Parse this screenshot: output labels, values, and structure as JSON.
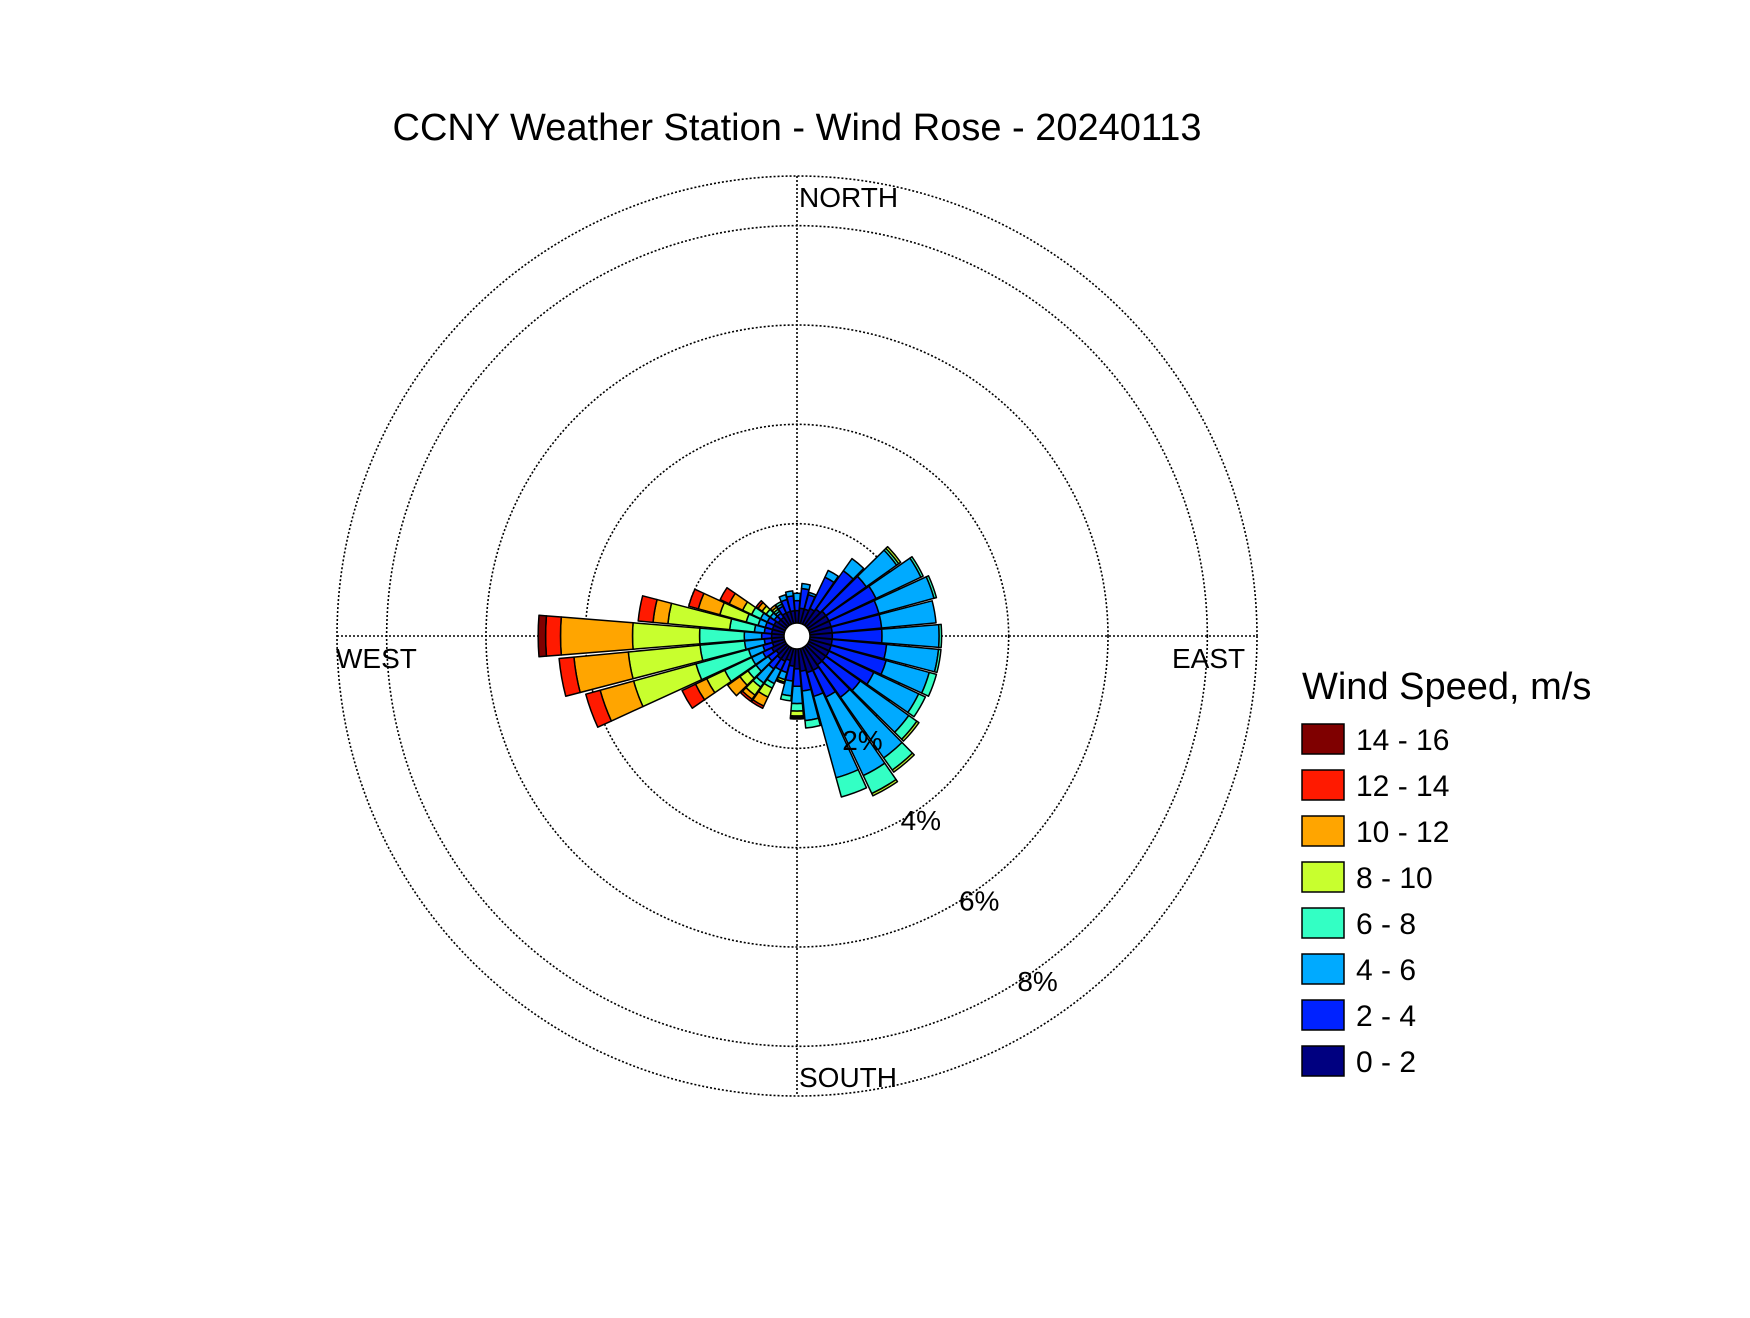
{
  "chart_data": {
    "type": "wind-rose",
    "title": "CCNY Weather Station - Wind Rose - 20240113",
    "directions": {
      "north": "NORTH",
      "south": "SOUTH",
      "east": "EAST",
      "west": "WEST"
    },
    "radial_unit": "%",
    "radial_max": 9,
    "rings": [
      {
        "value": 2,
        "label": "2%"
      },
      {
        "value": 4,
        "label": "4%"
      },
      {
        "value": 6,
        "label": "6%"
      },
      {
        "value": 8,
        "label": "8%"
      }
    ],
    "sector_width_deg": 10,
    "legend": {
      "title": "Wind Speed, m/s",
      "bins": [
        {
          "label": "14 - 16",
          "color": "#7f0000"
        },
        {
          "label": "12 - 14",
          "color": "#ff1a00"
        },
        {
          "label": "10 - 12",
          "color": "#ffa500"
        },
        {
          "label": "8 - 10",
          "color": "#c8ff2e"
        },
        {
          "label": "6 - 8",
          "color": "#33ffc4"
        },
        {
          "label": "4 - 6",
          "color": "#00aaff"
        },
        {
          "label": "2 - 4",
          "color": "#0022ff"
        },
        {
          "label": "0 - 2",
          "color": "#000080"
        }
      ]
    },
    "bin_order": [
      "0 - 2",
      "2 - 4",
      "4 - 6",
      "6 - 8",
      "8 - 10",
      "10 - 12",
      "12 - 14",
      "14 - 16"
    ],
    "sectors": [
      {
        "direction_deg": 0,
        "values": [
          0.25,
          0.2,
          0.15,
          0.0,
          0.0,
          0.0,
          0.0,
          0.0
        ]
      },
      {
        "direction_deg": 10,
        "values": [
          0.3,
          0.4,
          0.1,
          0.0,
          0.0,
          0.0,
          0.0,
          0.0
        ]
      },
      {
        "direction_deg": 20,
        "values": [
          0.3,
          0.3,
          0.05,
          0.0,
          0.0,
          0.0,
          0.0,
          0.0
        ]
      },
      {
        "direction_deg": 30,
        "values": [
          0.35,
          0.7,
          0.15,
          0.0,
          0.0,
          0.0,
          0.0,
          0.0
        ]
      },
      {
        "direction_deg": 40,
        "values": [
          0.4,
          0.95,
          0.3,
          0.0,
          0.0,
          0.0,
          0.0,
          0.0
        ]
      },
      {
        "direction_deg": 50,
        "values": [
          0.45,
          1.0,
          0.75,
          0.05,
          0.05,
          0.0,
          0.0,
          0.0
        ]
      },
      {
        "direction_deg": 60,
        "values": [
          0.45,
          1.05,
          1.0,
          0.05,
          0.0,
          0.0,
          0.0,
          0.0
        ]
      },
      {
        "direction_deg": 70,
        "values": [
          0.45,
          1.0,
          1.15,
          0.05,
          0.0,
          0.0,
          0.0,
          0.0
        ]
      },
      {
        "direction_deg": 80,
        "values": [
          0.45,
          1.0,
          1.1,
          0.0,
          0.0,
          0.0,
          0.0,
          0.0
        ]
      },
      {
        "direction_deg": 90,
        "values": [
          0.45,
          1.0,
          1.15,
          0.05,
          0.0,
          0.0,
          0.0,
          0.0
        ]
      },
      {
        "direction_deg": 100,
        "values": [
          0.45,
          1.1,
          1.05,
          0.05,
          0.0,
          0.0,
          0.0,
          0.0
        ]
      },
      {
        "direction_deg": 110,
        "values": [
          0.45,
          1.15,
          0.9,
          0.15,
          0.0,
          0.0,
          0.0,
          0.0
        ]
      },
      {
        "direction_deg": 120,
        "values": [
          0.45,
          1.0,
          1.0,
          0.15,
          0.0,
          0.0,
          0.0,
          0.0
        ]
      },
      {
        "direction_deg": 130,
        "values": [
          0.45,
          0.85,
          1.2,
          0.2,
          0.05,
          0.0,
          0.0,
          0.0
        ]
      },
      {
        "direction_deg": 140,
        "values": [
          0.45,
          0.8,
          1.5,
          0.3,
          0.05,
          0.0,
          0.0,
          0.0
        ]
      },
      {
        "direction_deg": 150,
        "values": [
          0.5,
          0.6,
          1.75,
          0.4,
          0.05,
          0.0,
          0.0,
          0.0
        ]
      },
      {
        "direction_deg": 160,
        "values": [
          0.5,
          0.5,
          1.7,
          0.4,
          0.0,
          0.0,
          0.0,
          0.0
        ]
      },
      {
        "direction_deg": 170,
        "values": [
          0.45,
          0.4,
          0.6,
          0.15,
          0.0,
          0.0,
          0.0,
          0.0
        ]
      },
      {
        "direction_deg": 180,
        "values": [
          0.4,
          0.35,
          0.35,
          0.15,
          0.1,
          0.03,
          0.03,
          0.0
        ]
      },
      {
        "direction_deg": 190,
        "values": [
          0.35,
          0.3,
          0.3,
          0.1,
          0.0,
          0.0,
          0.0,
          0.0
        ]
      },
      {
        "direction_deg": 200,
        "values": [
          0.25,
          0.25,
          0.15,
          0.0,
          0.05,
          0.0,
          0.03,
          0.0
        ]
      },
      {
        "direction_deg": 210,
        "values": [
          0.3,
          0.2,
          0.3,
          0.1,
          0.2,
          0.2,
          0.05,
          0.0
        ]
      },
      {
        "direction_deg": 220,
        "values": [
          0.3,
          0.25,
          0.35,
          0.1,
          0.2,
          0.1,
          0.05,
          0.0
        ]
      },
      {
        "direction_deg": 230,
        "values": [
          0.25,
          0.2,
          0.3,
          0.2,
          0.2,
          0.3,
          0.0,
          0.0
        ]
      },
      {
        "direction_deg": 240,
        "values": [
          0.3,
          0.2,
          0.25,
          0.6,
          0.4,
          0.25,
          0.3,
          0.0
        ]
      },
      {
        "direction_deg": 250,
        "values": [
          0.25,
          0.2,
          0.3,
          1.1,
          1.3,
          0.7,
          0.3,
          0.0
        ]
      },
      {
        "direction_deg": 260,
        "values": [
          0.25,
          0.15,
          0.4,
          0.9,
          1.45,
          1.1,
          0.3,
          0.0
        ]
      },
      {
        "direction_deg": 270,
        "values": [
          0.25,
          0.2,
          0.35,
          0.9,
          1.35,
          1.45,
          0.3,
          0.15
        ]
      },
      {
        "direction_deg": 280,
        "values": [
          0.25,
          0.15,
          0.2,
          0.5,
          1.25,
          0.3,
          0.3,
          0.0
        ]
      },
      {
        "direction_deg": 290,
        "values": [
          0.25,
          0.15,
          0.15,
          0.25,
          0.55,
          0.45,
          0.2,
          0.0
        ]
      },
      {
        "direction_deg": 300,
        "values": [
          0.25,
          0.15,
          0.15,
          0.2,
          0.2,
          0.3,
          0.2,
          0.0
        ]
      },
      {
        "direction_deg": 310,
        "values": [
          0.2,
          0.1,
          0.1,
          0.1,
          0.1,
          0.1,
          0.05,
          0.0
        ]
      },
      {
        "direction_deg": 320,
        "values": [
          0.2,
          0.1,
          0.05,
          0.05,
          0.05,
          0.05,
          0.0,
          0.0
        ]
      },
      {
        "direction_deg": 330,
        "values": [
          0.25,
          0.15,
          0.05,
          0.05,
          0.0,
          0.0,
          0.0,
          0.0
        ]
      },
      {
        "direction_deg": 340,
        "values": [
          0.25,
          0.25,
          0.1,
          0.0,
          0.0,
          0.0,
          0.0,
          0.0
        ]
      },
      {
        "direction_deg": 350,
        "values": [
          0.25,
          0.3,
          0.1,
          0.0,
          0.0,
          0.0,
          0.0,
          0.0
        ]
      }
    ]
  }
}
